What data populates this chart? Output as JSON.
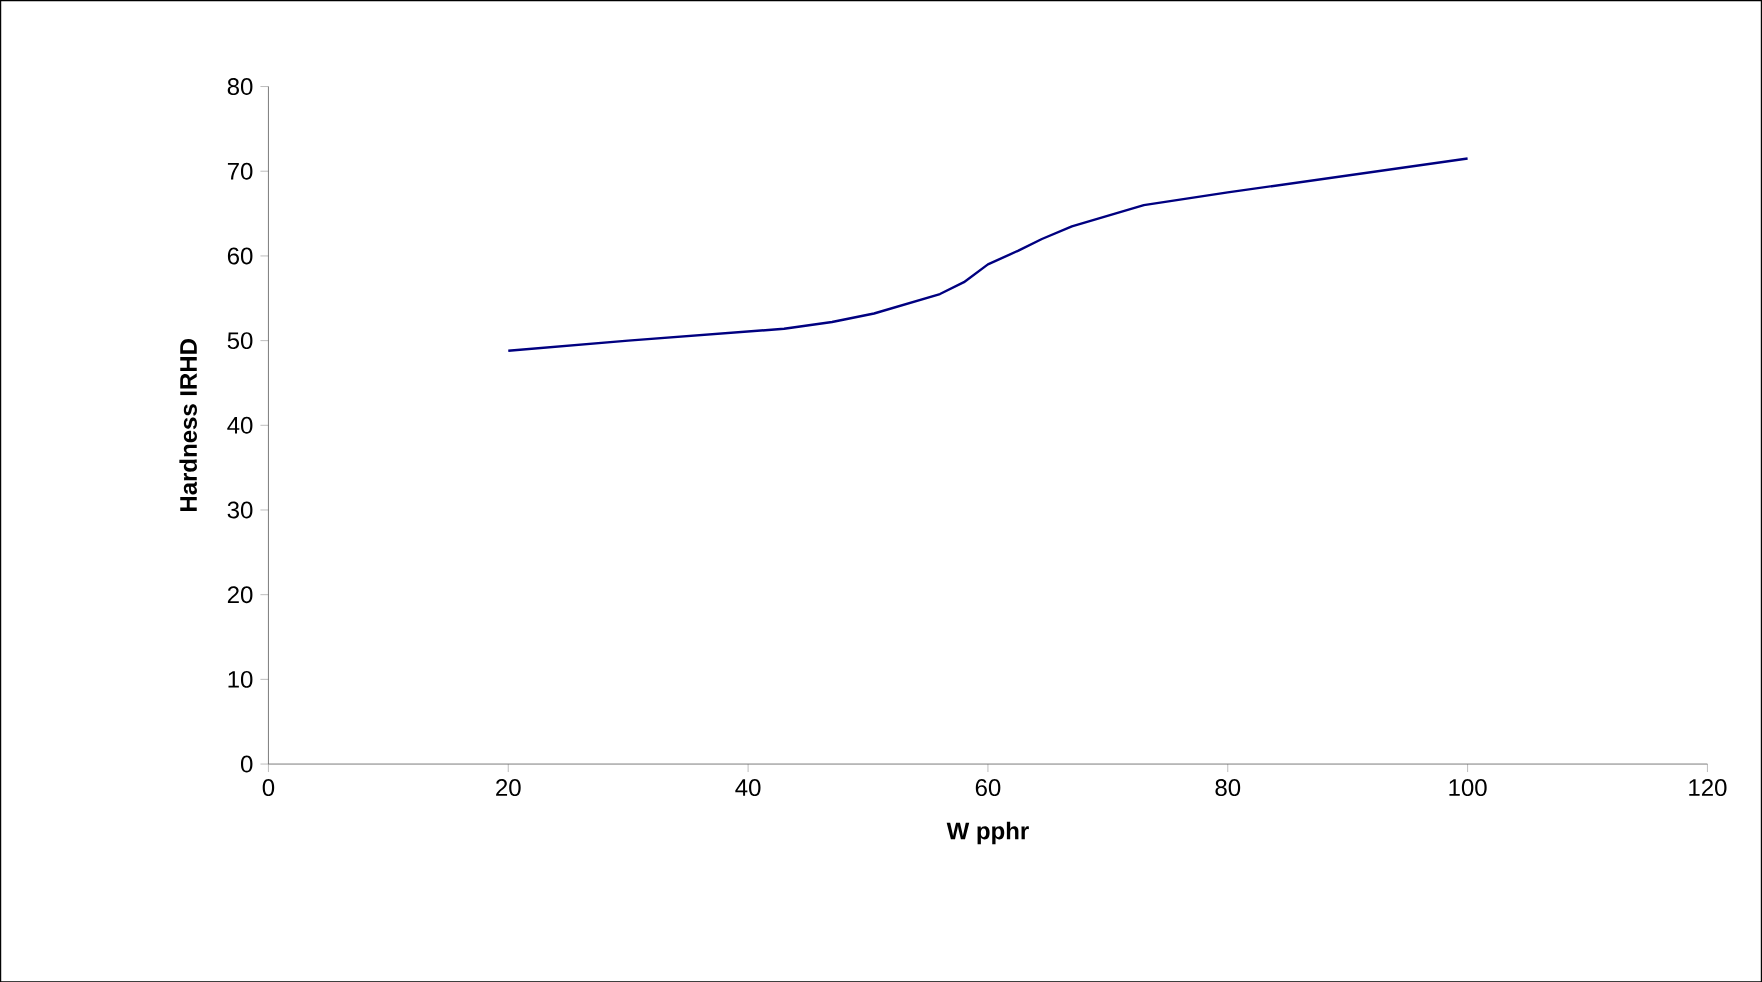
{
  "chart_data": {
    "type": "line",
    "xlabel": "W pphr",
    "ylabel": "Hardness IRHD",
    "x": [
      20,
      30,
      43,
      47,
      50.5,
      56,
      58,
      60,
      62.5,
      64.5,
      67,
      73,
      80,
      100
    ],
    "values": [
      48.8,
      50.0,
      51.4,
      52.2,
      53.2,
      55.5,
      56.9,
      59.0,
      60.6,
      62.0,
      63.5,
      66.0,
      67.5,
      71.5
    ],
    "color": "#000080",
    "xlim": [
      0,
      120
    ],
    "xticks": [
      0,
      20,
      40,
      60,
      80,
      100,
      120
    ],
    "ylim": [
      0,
      80
    ],
    "yticks": [
      0,
      10,
      20,
      30,
      40,
      50,
      60,
      70,
      80
    ],
    "marker": "none",
    "line_style": "solid"
  }
}
